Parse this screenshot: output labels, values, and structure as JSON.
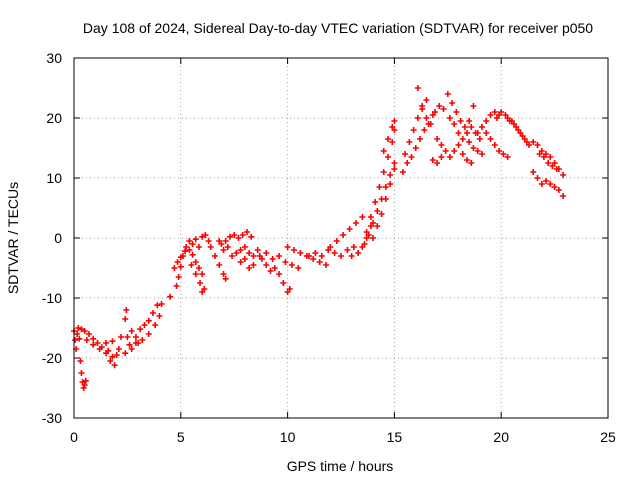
{
  "chart_data": {
    "type": "scatter",
    "title": "Day 108 of 2024, Sidereal Day-to-day VTEC variation (SDTVAR) for receiver p050",
    "xlabel": "GPS time / hours",
    "ylabel": "SDTVAR / TECUs",
    "xlim": [
      0,
      25
    ],
    "ylim": [
      -30,
      30
    ],
    "xticks": [
      0,
      5,
      10,
      15,
      20,
      25
    ],
    "yticks": [
      -30,
      -20,
      -10,
      0,
      10,
      20,
      30
    ],
    "grid": true,
    "marker": "+",
    "series": [
      {
        "name": "SDTVAR",
        "color": "#ff0000",
        "points": [
          [
            0.0,
            -15.5
          ],
          [
            0.05,
            -17.0
          ],
          [
            0.1,
            -18.5
          ],
          [
            0.15,
            -16.0
          ],
          [
            0.2,
            -15.0
          ],
          [
            0.25,
            -16.8
          ],
          [
            0.3,
            -20.5
          ],
          [
            0.35,
            -22.5
          ],
          [
            0.4,
            -24.0
          ],
          [
            0.45,
            -25.0
          ],
          [
            0.5,
            -24.5
          ],
          [
            0.55,
            -23.8
          ],
          [
            0.35,
            -15.2
          ],
          [
            0.5,
            -15.5
          ],
          [
            0.7,
            -16.0
          ],
          [
            0.9,
            -16.8
          ],
          [
            1.1,
            -17.5
          ],
          [
            1.3,
            -18.2
          ],
          [
            1.5,
            -19.2
          ],
          [
            1.7,
            -20.5
          ],
          [
            1.9,
            -21.2
          ],
          [
            0.6,
            -17.0
          ],
          [
            0.9,
            -17.8
          ],
          [
            1.2,
            -18.5
          ],
          [
            1.5,
            -17.5
          ],
          [
            1.8,
            -17.2
          ],
          [
            2.1,
            -18.5
          ],
          [
            2.4,
            -19.2
          ],
          [
            2.7,
            -18.5
          ],
          [
            3.0,
            -17.5
          ],
          [
            1.6,
            -18.8
          ],
          [
            1.8,
            -19.8
          ],
          [
            2.0,
            -19.5
          ],
          [
            2.2,
            -16.5
          ],
          [
            2.4,
            -13.5
          ],
          [
            2.45,
            -12.0
          ],
          [
            2.5,
            -16.5
          ],
          [
            2.7,
            -15.5
          ],
          [
            2.9,
            -16.5
          ],
          [
            3.1,
            -15.2
          ],
          [
            3.3,
            -14.5
          ],
          [
            3.5,
            -13.8
          ],
          [
            3.7,
            -12.5
          ],
          [
            3.9,
            -11.2
          ],
          [
            2.6,
            -17.8
          ],
          [
            2.9,
            -17.5
          ],
          [
            3.2,
            -17.0
          ],
          [
            3.5,
            -16.0
          ],
          [
            3.8,
            -14.5
          ],
          [
            4.0,
            -13.0
          ],
          [
            4.1,
            -11.0
          ],
          [
            4.5,
            -9.8
          ],
          [
            4.8,
            -8.0
          ],
          [
            4.9,
            -6.5
          ],
          [
            5.0,
            -4.8
          ],
          [
            5.1,
            -3.0
          ],
          [
            5.25,
            -1.5
          ],
          [
            5.4,
            -0.5
          ],
          [
            5.55,
            -1.0
          ],
          [
            5.7,
            -0.2
          ],
          [
            5.85,
            -1.5
          ],
          [
            6.0,
            0.2
          ],
          [
            6.15,
            0.5
          ],
          [
            6.3,
            -0.5
          ],
          [
            4.7,
            -5.0
          ],
          [
            4.85,
            -4.0
          ],
          [
            5.0,
            -3.2
          ],
          [
            5.2,
            -2.2
          ],
          [
            5.4,
            -2.0
          ],
          [
            5.55,
            -2.8
          ],
          [
            5.7,
            -4.0
          ],
          [
            5.85,
            -5.0
          ],
          [
            6.0,
            -6.0
          ],
          [
            5.5,
            -4.5
          ],
          [
            5.7,
            -6.0
          ],
          [
            5.9,
            -7.5
          ],
          [
            6.0,
            -9.0
          ],
          [
            6.1,
            -8.5
          ],
          [
            6.4,
            -1.5
          ],
          [
            6.6,
            -3.0
          ],
          [
            6.8,
            -4.5
          ],
          [
            7.0,
            -6.0
          ],
          [
            7.1,
            -6.8
          ],
          [
            6.8,
            -0.5
          ],
          [
            7.0,
            -2.0
          ],
          [
            7.2,
            -1.5
          ],
          [
            7.4,
            -3.0
          ],
          [
            7.6,
            -2.5
          ],
          [
            7.8,
            -4.0
          ],
          [
            8.0,
            -3.5
          ],
          [
            8.2,
            -5.0
          ],
          [
            8.4,
            -4.5
          ],
          [
            6.9,
            -1.0
          ],
          [
            7.1,
            -0.5
          ],
          [
            7.3,
            0.2
          ],
          [
            7.5,
            0.5
          ],
          [
            7.7,
            0.0
          ],
          [
            7.9,
            0.5
          ],
          [
            8.1,
            1.0
          ],
          [
            8.3,
            0.2
          ],
          [
            7.8,
            -2.0
          ],
          [
            8.0,
            -1.5
          ],
          [
            8.2,
            -2.5
          ],
          [
            8.4,
            -3.0
          ],
          [
            8.6,
            -2.0
          ],
          [
            8.8,
            -3.5
          ],
          [
            9.0,
            -4.5
          ],
          [
            9.2,
            -5.5
          ],
          [
            9.4,
            -5.0
          ],
          [
            8.7,
            -3.0
          ],
          [
            9.0,
            -2.5
          ],
          [
            9.3,
            -3.5
          ],
          [
            9.6,
            -3.0
          ],
          [
            9.9,
            -4.0
          ],
          [
            10.2,
            -4.5
          ],
          [
            10.5,
            -5.0
          ],
          [
            9.6,
            -6.0
          ],
          [
            9.8,
            -7.5
          ],
          [
            10.0,
            -9.0
          ],
          [
            10.1,
            -8.5
          ],
          [
            10.0,
            -1.5
          ],
          [
            10.3,
            -2.0
          ],
          [
            10.6,
            -2.5
          ],
          [
            10.9,
            -3.0
          ],
          [
            11.2,
            -3.5
          ],
          [
            11.5,
            -4.0
          ],
          [
            11.8,
            -4.5
          ],
          [
            11.0,
            -3.0
          ],
          [
            11.3,
            -2.5
          ],
          [
            11.6,
            -3.0
          ],
          [
            11.9,
            -2.0
          ],
          [
            12.2,
            -2.5
          ],
          [
            12.5,
            -3.0
          ],
          [
            12.8,
            -2.0
          ],
          [
            13.1,
            -1.5
          ],
          [
            12.0,
            -1.5
          ],
          [
            12.3,
            -0.5
          ],
          [
            12.6,
            0.5
          ],
          [
            12.9,
            1.5
          ],
          [
            13.2,
            2.5
          ],
          [
            13.5,
            3.5
          ],
          [
            13.0,
            -3.0
          ],
          [
            13.3,
            -2.5
          ],
          [
            13.5,
            -1.5
          ],
          [
            13.7,
            0.0
          ],
          [
            13.9,
            2.0
          ],
          [
            13.6,
            -1.0
          ],
          [
            13.8,
            0.5
          ],
          [
            14.0,
            2.5
          ],
          [
            14.2,
            4.5
          ],
          [
            14.4,
            6.5
          ],
          [
            14.6,
            8.5
          ],
          [
            14.8,
            10.5
          ],
          [
            15.0,
            12.5
          ],
          [
            13.7,
            1.0
          ],
          [
            13.9,
            3.5
          ],
          [
            14.1,
            6.0
          ],
          [
            14.3,
            8.5
          ],
          [
            14.5,
            11.0
          ],
          [
            14.7,
            13.5
          ],
          [
            14.9,
            16.0
          ],
          [
            15.0,
            18.0
          ],
          [
            14.0,
            0.0
          ],
          [
            14.2,
            2.0
          ],
          [
            14.4,
            4.0
          ],
          [
            14.6,
            6.5
          ],
          [
            14.8,
            9.0
          ],
          [
            15.0,
            11.5
          ],
          [
            14.5,
            14.5
          ],
          [
            14.7,
            16.5
          ],
          [
            14.9,
            18.5
          ],
          [
            15.0,
            19.5
          ],
          [
            15.4,
            11.0
          ],
          [
            15.6,
            12.5
          ],
          [
            15.8,
            13.5
          ],
          [
            16.0,
            15.0
          ],
          [
            16.2,
            16.5
          ],
          [
            16.4,
            18.0
          ],
          [
            16.6,
            19.0
          ],
          [
            16.8,
            20.5
          ],
          [
            15.5,
            14.0
          ],
          [
            15.7,
            16.0
          ],
          [
            15.9,
            18.0
          ],
          [
            16.1,
            20.0
          ],
          [
            16.3,
            21.5
          ],
          [
            16.5,
            23.0
          ],
          [
            16.1,
            25.0
          ],
          [
            16.3,
            22.0
          ],
          [
            16.5,
            20.0
          ],
          [
            16.7,
            19.0
          ],
          [
            16.9,
            21.0
          ],
          [
            17.1,
            22.0
          ],
          [
            17.3,
            21.5
          ],
          [
            17.0,
            16.5
          ],
          [
            17.2,
            15.5
          ],
          [
            17.4,
            14.5
          ],
          [
            17.6,
            13.5
          ],
          [
            17.8,
            14.5
          ],
          [
            18.0,
            15.5
          ],
          [
            18.2,
            14.0
          ],
          [
            18.4,
            13.0
          ],
          [
            18.6,
            12.5
          ],
          [
            16.8,
            13.0
          ],
          [
            17.0,
            12.5
          ],
          [
            17.2,
            13.5
          ],
          [
            17.5,
            24.0
          ],
          [
            17.7,
            22.5
          ],
          [
            17.9,
            21.0
          ],
          [
            18.1,
            19.5
          ],
          [
            18.3,
            18.5
          ],
          [
            18.5,
            19.5
          ],
          [
            18.7,
            22.0
          ],
          [
            17.6,
            20.0
          ],
          [
            17.8,
            19.0
          ],
          [
            18.0,
            17.5
          ],
          [
            18.2,
            16.5
          ],
          [
            18.4,
            17.5
          ],
          [
            18.6,
            18.5
          ],
          [
            18.8,
            17.5
          ],
          [
            19.0,
            16.5
          ],
          [
            18.5,
            16.0
          ],
          [
            18.7,
            15.0
          ],
          [
            18.9,
            14.5
          ],
          [
            19.1,
            14.0
          ],
          [
            18.9,
            17.5
          ],
          [
            19.1,
            18.5
          ],
          [
            19.3,
            19.5
          ],
          [
            19.5,
            20.5
          ],
          [
            19.7,
            21.0
          ],
          [
            19.9,
            20.5
          ],
          [
            19.3,
            17.5
          ],
          [
            19.5,
            16.5
          ],
          [
            19.7,
            15.5
          ],
          [
            19.9,
            14.5
          ],
          [
            20.1,
            14.0
          ],
          [
            20.3,
            13.5
          ],
          [
            19.8,
            20.0
          ],
          [
            20.0,
            21.0
          ],
          [
            20.2,
            20.5
          ],
          [
            20.4,
            19.5
          ],
          [
            20.6,
            19.0
          ],
          [
            20.8,
            18.0
          ],
          [
            21.0,
            17.0
          ],
          [
            21.2,
            16.0
          ],
          [
            20.3,
            20.0
          ],
          [
            20.5,
            19.5
          ],
          [
            20.7,
            18.5
          ],
          [
            20.9,
            17.5
          ],
          [
            21.1,
            16.5
          ],
          [
            21.3,
            15.5
          ],
          [
            21.5,
            16.0
          ],
          [
            21.7,
            15.5
          ],
          [
            21.9,
            14.5
          ],
          [
            22.1,
            14.0
          ],
          [
            22.3,
            13.5
          ],
          [
            22.5,
            12.5
          ],
          [
            22.7,
            11.5
          ],
          [
            22.9,
            10.5
          ],
          [
            21.5,
            11.0
          ],
          [
            21.7,
            10.0
          ],
          [
            21.9,
            9.0
          ],
          [
            22.1,
            9.5
          ],
          [
            22.3,
            9.0
          ],
          [
            22.5,
            8.5
          ],
          [
            22.7,
            8.0
          ],
          [
            22.9,
            7.0
          ],
          [
            21.8,
            14.0
          ],
          [
            22.0,
            13.5
          ],
          [
            22.2,
            12.5
          ],
          [
            22.4,
            12.0
          ],
          [
            22.6,
            11.5
          ]
        ]
      }
    ]
  }
}
